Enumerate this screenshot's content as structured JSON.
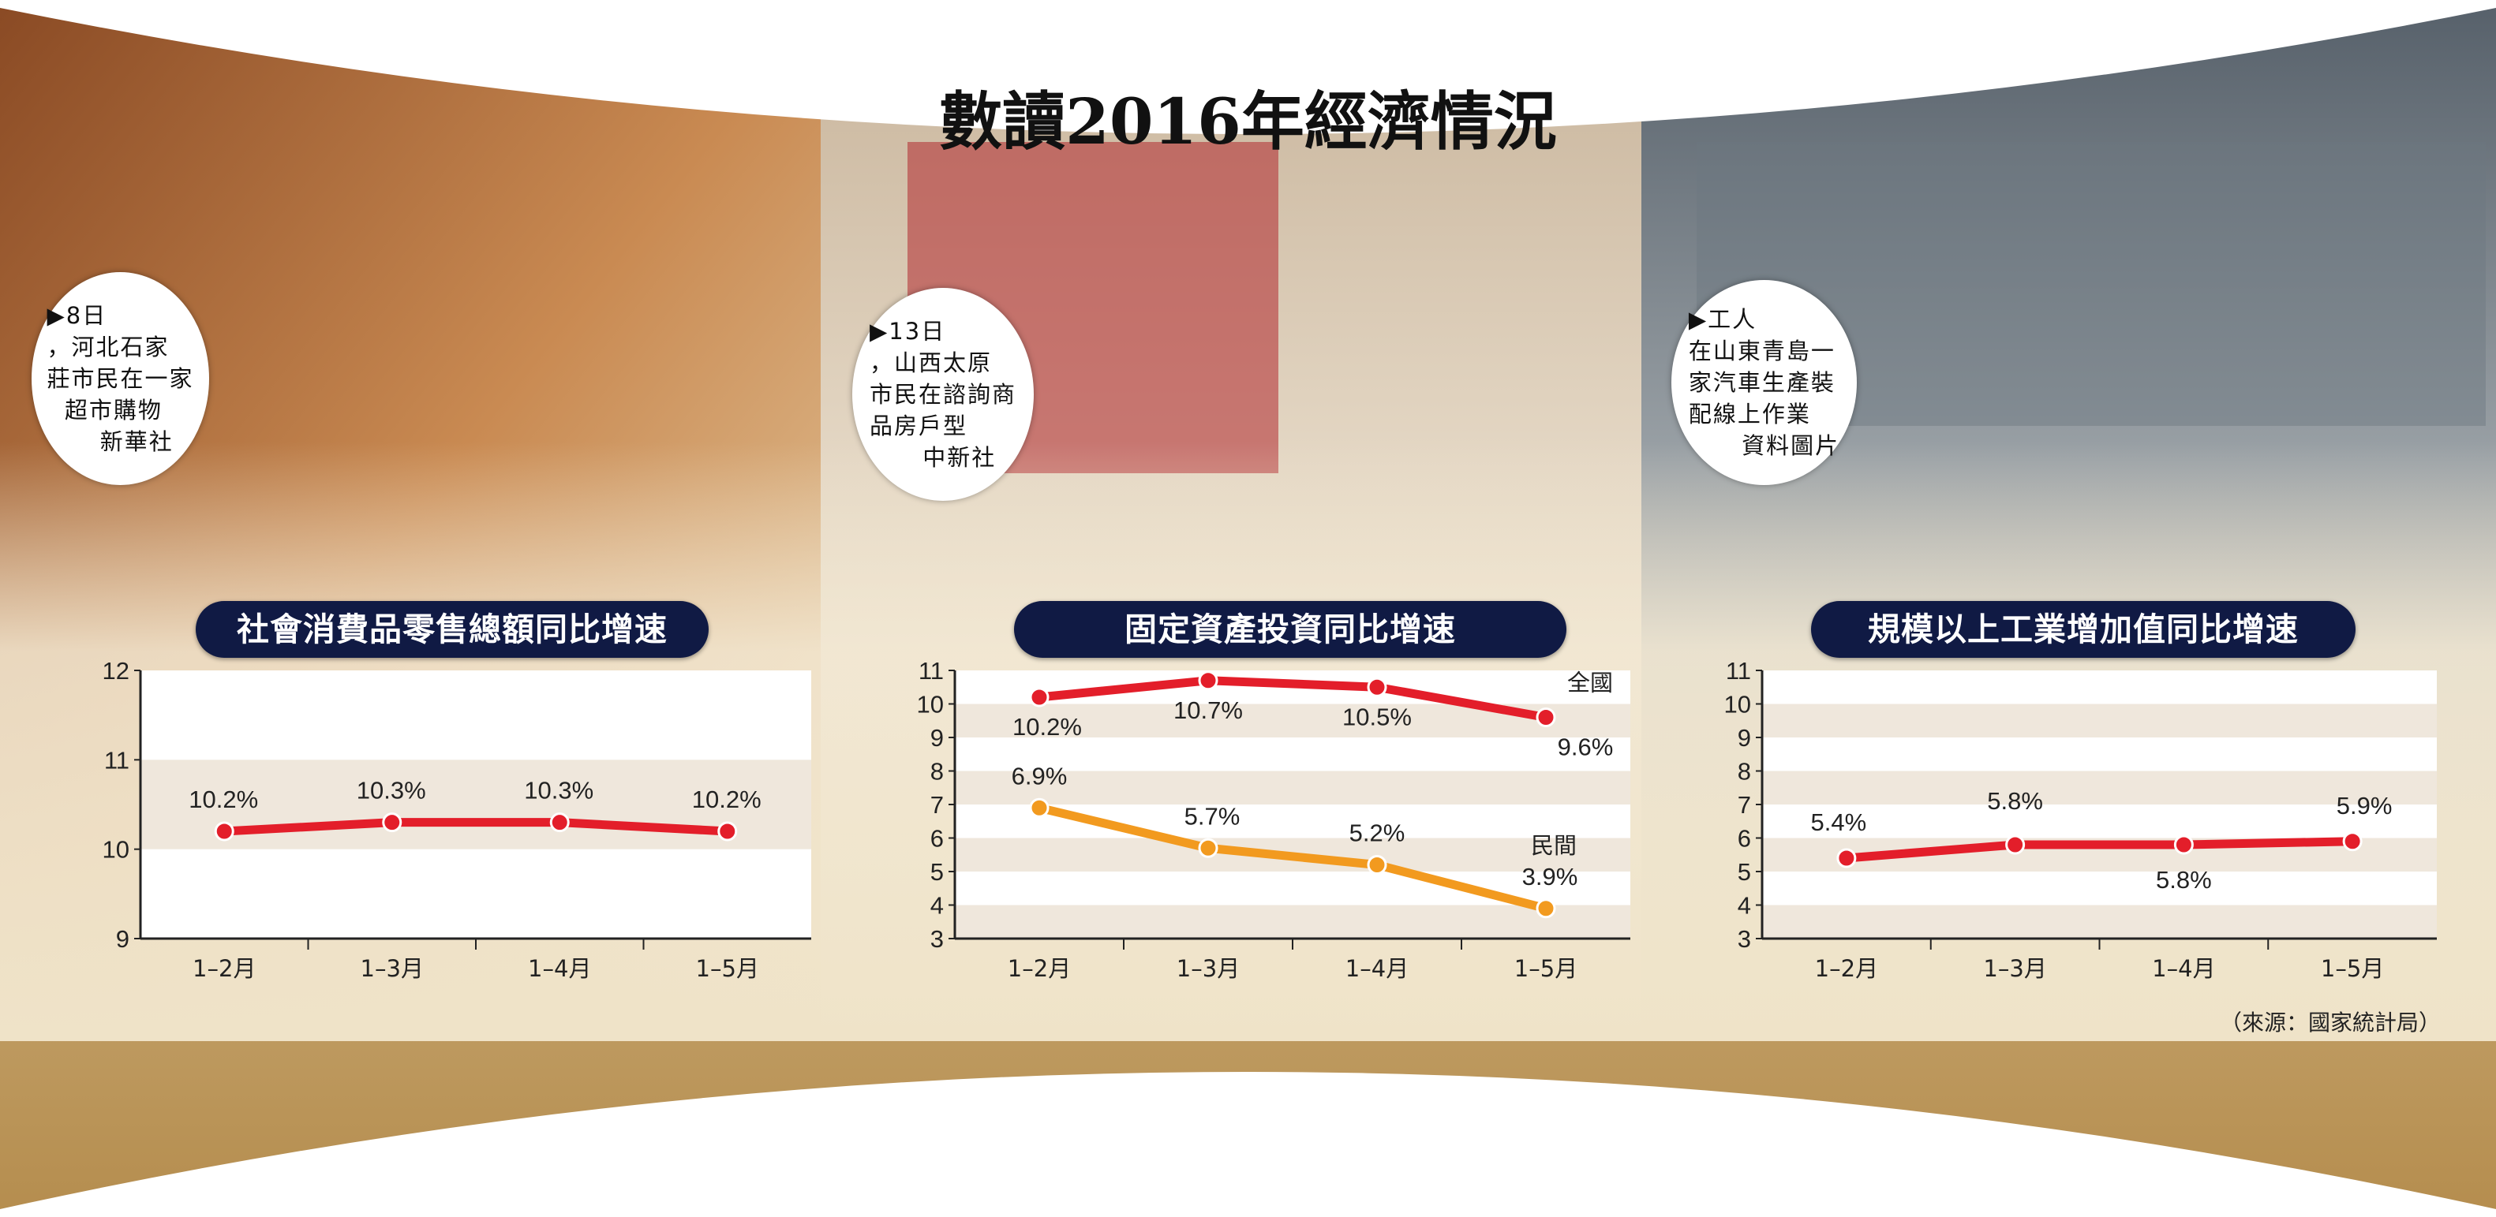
{
  "title": "數讀2016年經濟情況",
  "captions": [
    {
      "lines": "▶8日\n，河北石家\n莊市民在一家\n  超市購物\n      新華社"
    },
    {
      "lines": "▶13日\n，山西太原\n市民在諮詢商\n品房戶型\n      中新社"
    },
    {
      "lines": "▶工人\n在山東青島一\n家汽車生產裝\n配線上作業\n      資料圖片"
    }
  ],
  "source": "（來源：國家統計局）",
  "colors": {
    "red": "#e31e2a",
    "orange": "#f29a1f",
    "navy": "#101a44"
  },
  "chart_data": [
    {
      "type": "line",
      "title": "社會消費品零售總額同比增速",
      "categories": [
        "1–2月",
        "1–3月",
        "1–4月",
        "1–5月"
      ],
      "ylim": [
        9,
        12
      ],
      "yticks": [
        "9",
        "10",
        "11",
        "12"
      ],
      "series": [
        {
          "name": "",
          "values": [
            10.2,
            10.3,
            10.3,
            10.2
          ],
          "labels": [
            "10.2%",
            "10.3%",
            "10.3%",
            "10.2%"
          ],
          "color": "#e31e2a"
        }
      ]
    },
    {
      "type": "line",
      "title": "固定資產投資同比增速",
      "categories": [
        "1–2月",
        "1–3月",
        "1–4月",
        "1–5月"
      ],
      "ylim": [
        3,
        11
      ],
      "yticks": [
        "3",
        "4",
        "5",
        "6",
        "7",
        "8",
        "9",
        "10",
        "11"
      ],
      "series": [
        {
          "name": "全國",
          "values": [
            10.2,
            10.7,
            10.5,
            9.6
          ],
          "labels": [
            "10.2%",
            "10.7%",
            "10.5%",
            "9.6%"
          ],
          "color": "#e31e2a"
        },
        {
          "name": "民間",
          "values": [
            6.9,
            5.7,
            5.2,
            3.9
          ],
          "labels": [
            "6.9%",
            "5.7%",
            "5.2%",
            "3.9%"
          ],
          "color": "#f29a1f"
        }
      ]
    },
    {
      "type": "line",
      "title": "規模以上工業增加值同比增速",
      "categories": [
        "1–2月",
        "1–3月",
        "1–4月",
        "1–5月"
      ],
      "ylim": [
        3,
        11
      ],
      "yticks": [
        "3",
        "4",
        "5",
        "6",
        "7",
        "8",
        "9",
        "10",
        "11"
      ],
      "series": [
        {
          "name": "",
          "values": [
            5.4,
            5.8,
            5.8,
            5.9
          ],
          "labels": [
            "5.4%",
            "5.8%",
            "5.8%",
            "5.9%"
          ],
          "color": "#e31e2a"
        }
      ]
    }
  ]
}
